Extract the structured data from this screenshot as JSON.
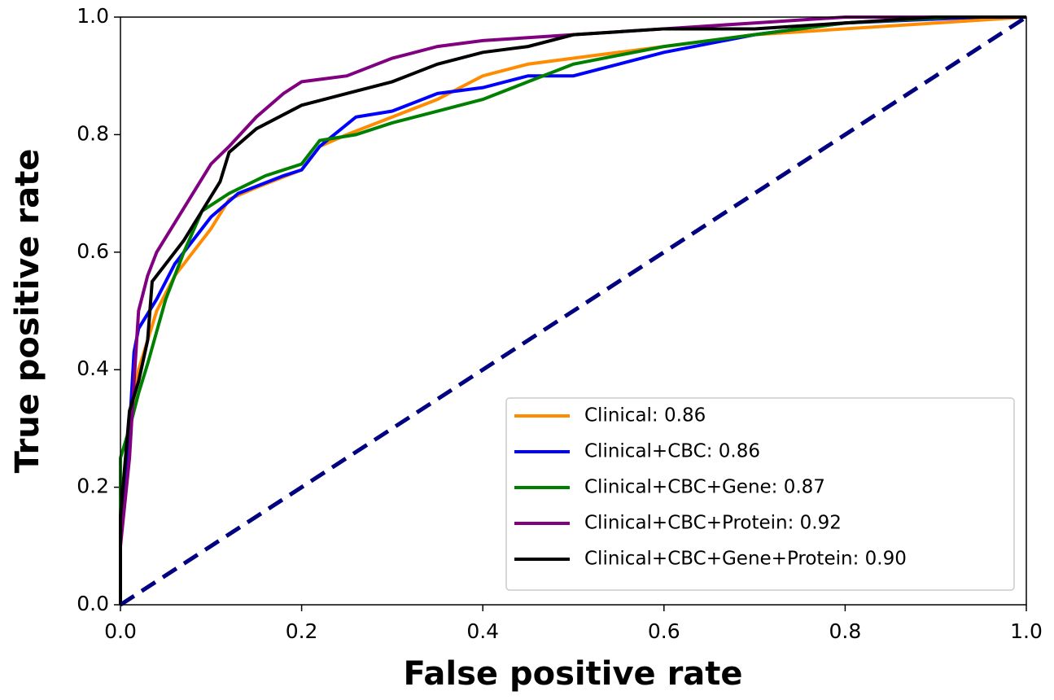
{
  "chart_data": {
    "type": "line",
    "xlabel": "False positive rate",
    "ylabel": "True positive rate",
    "xlim": [
      0,
      1
    ],
    "ylim": [
      0,
      1
    ],
    "xticks": [
      {
        "value": 0,
        "label": "0.0"
      },
      0.2,
      0.4,
      0.6,
      0.8,
      {
        "value": 1,
        "label": "1.0"
      }
    ],
    "yticks": [
      {
        "value": 0,
        "label": "0.0"
      },
      0.2,
      0.4,
      0.6,
      0.8,
      {
        "value": 1,
        "label": "1.0"
      }
    ],
    "legend": "lower right",
    "series": [
      {
        "name": "Clinical: 0.86",
        "color": "#ff8c00",
        "x": [
          0,
          0,
          0.005,
          0.01,
          0.02,
          0.04,
          0.06,
          0.08,
          0.1,
          0.12,
          0.15,
          0.2,
          0.22,
          0.25,
          0.3,
          0.35,
          0.4,
          0.45,
          0.5,
          0.6,
          0.7,
          0.8,
          0.9,
          1
        ],
        "values": [
          0,
          0.1,
          0.2,
          0.3,
          0.4,
          0.5,
          0.56,
          0.6,
          0.64,
          0.69,
          0.71,
          0.74,
          0.78,
          0.8,
          0.83,
          0.86,
          0.9,
          0.92,
          0.93,
          0.95,
          0.97,
          0.98,
          0.99,
          1
        ]
      },
      {
        "name": "Clinical+CBC: 0.86",
        "color": "#0000ff",
        "x": [
          0,
          0,
          0.01,
          0.015,
          0.02,
          0.04,
          0.06,
          0.08,
          0.1,
          0.13,
          0.18,
          0.2,
          0.22,
          0.26,
          0.3,
          0.35,
          0.4,
          0.45,
          0.5,
          0.55,
          0.6,
          0.7,
          0.8,
          0.95,
          1
        ],
        "values": [
          0,
          0.15,
          0.3,
          0.43,
          0.47,
          0.52,
          0.58,
          0.62,
          0.66,
          0.7,
          0.73,
          0.74,
          0.78,
          0.83,
          0.84,
          0.87,
          0.88,
          0.9,
          0.9,
          0.92,
          0.94,
          0.97,
          0.99,
          1,
          1
        ]
      },
      {
        "name": "Clinical+CBC+Gene: 0.87",
        "color": "#008000",
        "x": [
          0,
          0,
          0.01,
          0.02,
          0.03,
          0.05,
          0.07,
          0.09,
          0.12,
          0.16,
          0.2,
          0.22,
          0.26,
          0.3,
          0.35,
          0.4,
          0.45,
          0.5,
          0.6,
          0.7,
          0.8,
          0.92,
          1
        ],
        "values": [
          0,
          0.25,
          0.3,
          0.36,
          0.41,
          0.52,
          0.6,
          0.67,
          0.7,
          0.73,
          0.75,
          0.79,
          0.8,
          0.82,
          0.84,
          0.86,
          0.89,
          0.92,
          0.95,
          0.97,
          0.99,
          1,
          1
        ]
      },
      {
        "name": "Clinical+CBC+Protein: 0.92",
        "color": "#800080",
        "x": [
          0,
          0,
          0.01,
          0.015,
          0.02,
          0.03,
          0.04,
          0.06,
          0.08,
          0.1,
          0.12,
          0.15,
          0.18,
          0.2,
          0.25,
          0.3,
          0.35,
          0.4,
          0.5,
          0.6,
          0.7,
          0.8,
          1
        ],
        "values": [
          0,
          0.1,
          0.25,
          0.38,
          0.5,
          0.56,
          0.6,
          0.65,
          0.7,
          0.75,
          0.78,
          0.83,
          0.87,
          0.89,
          0.9,
          0.93,
          0.95,
          0.96,
          0.97,
          0.98,
          0.99,
          1,
          1
        ]
      },
      {
        "name": "Clinical+CBC+Gene+Protein: 0.90",
        "color": "#000000",
        "x": [
          0,
          0,
          0.01,
          0.02,
          0.03,
          0.035,
          0.05,
          0.07,
          0.09,
          0.11,
          0.12,
          0.15,
          0.2,
          0.25,
          0.3,
          0.35,
          0.4,
          0.45,
          0.5,
          0.6,
          0.7,
          0.8,
          0.9,
          1
        ],
        "values": [
          0,
          0.15,
          0.33,
          0.38,
          0.45,
          0.55,
          0.58,
          0.62,
          0.67,
          0.72,
          0.77,
          0.81,
          0.85,
          0.87,
          0.89,
          0.92,
          0.94,
          0.95,
          0.97,
          0.98,
          0.98,
          0.99,
          1,
          1
        ]
      }
    ],
    "reference_line": {
      "x": [
        0,
        1
      ],
      "values": [
        0,
        1
      ],
      "color": "#000080",
      "dashed": true
    }
  }
}
